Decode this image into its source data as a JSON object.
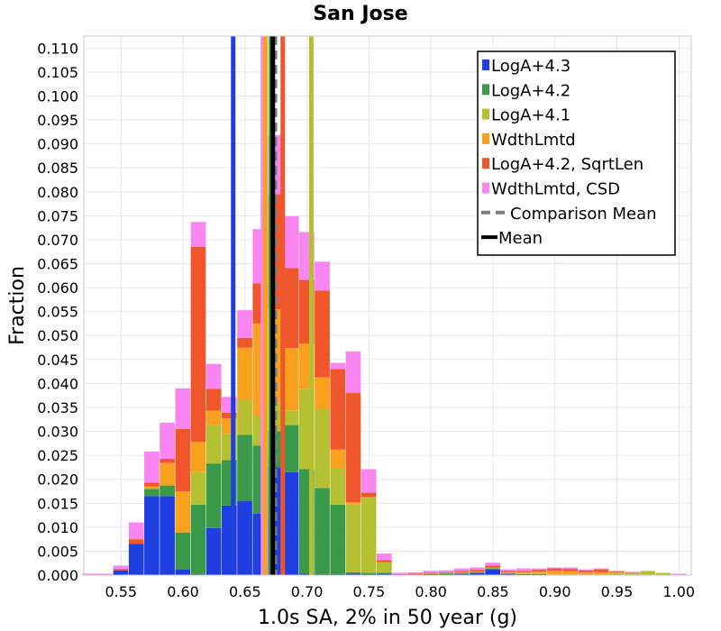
{
  "chart_data": {
    "type": "bar",
    "title": "San Jose",
    "xlabel": "1.0s SA, 2% in 50 year (g)",
    "ylabel": "Fraction",
    "xlim": [
      0.52,
      1.01
    ],
    "ylim": [
      0,
      0.1125
    ],
    "xticks": [
      "0.55",
      "0.60",
      "0.65",
      "0.70",
      "0.75",
      "0.80",
      "0.85",
      "0.90",
      "0.95",
      "1.00"
    ],
    "yticks": [
      "0.000",
      "0.005",
      "0.010",
      "0.015",
      "0.020",
      "0.025",
      "0.030",
      "0.035",
      "0.040",
      "0.045",
      "0.050",
      "0.055",
      "0.060",
      "0.065",
      "0.070",
      "0.075",
      "0.080",
      "0.085",
      "0.090",
      "0.095",
      "0.100",
      "0.105",
      "0.110"
    ],
    "grid": true,
    "legend_position": "top-right",
    "bin_width": 0.0125,
    "x": [
      0.525,
      0.5375,
      0.55,
      0.5625,
      0.575,
      0.5875,
      0.6,
      0.6125,
      0.625,
      0.6375,
      0.65,
      0.6625,
      0.675,
      0.6875,
      0.7,
      0.7125,
      0.725,
      0.7375,
      0.75,
      0.7625,
      0.775,
      0.7875,
      0.8,
      0.8125,
      0.825,
      0.8375,
      0.85,
      0.8625,
      0.875,
      0.8875,
      0.9,
      0.9125,
      0.925,
      0.9375,
      0.95,
      0.9625,
      0.975,
      0.9875,
      1.0
    ],
    "series": [
      {
        "name": "LogA+4.3",
        "color": "#1f3fe0",
        "values": [
          0,
          0,
          0.001,
          0.0065,
          0.0165,
          0.0165,
          0.0012,
          0.0002,
          0.0098,
          0.0145,
          0.0155,
          0.0128,
          0.0225,
          0.0215,
          0.0003,
          0.0002,
          0.0002,
          0.0003,
          0.0002,
          0.0003,
          0,
          0,
          0.0002,
          0.0002,
          0.0003,
          0.0005,
          0.0012,
          0.0003,
          0.0002,
          0.0002,
          0,
          0,
          0,
          0,
          0,
          0,
          0,
          0,
          0
        ]
      },
      {
        "name": "LogA+4.2",
        "color": "#3a9a4a",
        "values": [
          0,
          0,
          0,
          0,
          0.0015,
          0.0022,
          0.0077,
          0.0145,
          0.0135,
          0.0095,
          0.0138,
          0.0142,
          0.0075,
          0.0098,
          0.0218,
          0.018,
          0.0145,
          0.0003,
          0.0003,
          0.0002,
          0,
          0,
          0,
          0.0001,
          0,
          0,
          0.0002,
          0,
          0,
          0,
          0,
          0,
          0,
          0,
          0,
          0,
          0,
          0,
          0
        ]
      },
      {
        "name": "LogA+4.1",
        "color": "#b4c032",
        "values": [
          0,
          0,
          0,
          0,
          0,
          0,
          0,
          0.0068,
          0.008,
          0.0055,
          0.0073,
          0.0062,
          0.0058,
          0.003,
          0.0168,
          0.0165,
          0.0076,
          0.0142,
          0.0158,
          0.0022,
          0,
          0.0001,
          0.0001,
          0.0001,
          0.0003,
          0.0002,
          0.0002,
          0.0001,
          0.0002,
          0.0002,
          0.0002,
          0.0002,
          0.0002,
          0.0002,
          0.0004,
          0.0005,
          0.0008,
          0.0004,
          0.0002
        ]
      },
      {
        "name": "WdthLmtd",
        "color": "#f7a11f",
        "values": [
          0,
          0,
          0,
          0,
          0.0005,
          0.0047,
          0.0086,
          0.0063,
          0.003,
          0.0032,
          0.0109,
          0.0193,
          0.0197,
          0.0131,
          0.0094,
          0.0066,
          0.0039,
          0.0004,
          0,
          0,
          0,
          0,
          0,
          0,
          0,
          0,
          0,
          0.0002,
          0.0002,
          0.0003,
          0.0007,
          0.0006,
          0.0004,
          0.0004,
          0.0002,
          0,
          0,
          0,
          0
        ]
      },
      {
        "name": "LogA+4.2, SqrtLen",
        "color": "#f0562b",
        "values": [
          0,
          0,
          0.0003,
          0.001,
          0.0008,
          0.0009,
          0.013,
          0.0407,
          0.0046,
          0.0012,
          0.002,
          0.0084,
          0.024,
          0.0167,
          0.0133,
          0.0181,
          0.0168,
          0.0228,
          0.0009,
          0.0004,
          0.0002,
          0.0002,
          0.0002,
          0.0002,
          0.0003,
          0.0004,
          0.0004,
          0.0003,
          0.0003,
          0.0004,
          0.0005,
          0.0005,
          0.0004,
          0.0006,
          0.0002,
          0.0001,
          0,
          0,
          0
        ]
      },
      {
        "name": "WdthLmtd, CSD",
        "color": "#f986f0",
        "values": [
          0.0003,
          0.0003,
          0.0007,
          0.0035,
          0.0065,
          0.0075,
          0.0085,
          0.0052,
          0.0052,
          0.0033,
          0.0058,
          0.0113,
          0.0123,
          0.0108,
          0.01,
          0.006,
          0.0013,
          0.0087,
          0.0049,
          0.0014,
          0.0003,
          0.0003,
          0.0004,
          0.0004,
          0.0005,
          0.0005,
          0.0006,
          0.0003,
          0.0005,
          0.0003,
          0.0002,
          0.0003,
          0.0002,
          0.0002,
          0.0001,
          0.0001,
          0.0001,
          0.0001,
          0.0001
        ]
      }
    ],
    "vlines": [
      {
        "name": "LogA+4.3",
        "x": 0.6405,
        "color": "#1f3fe0",
        "style": "solid"
      },
      {
        "name": "WdthLmtd, CSD",
        "x": 0.6645,
        "color": "#f986f0",
        "style": "solid"
      },
      {
        "name": "WdthLmtd",
        "x": 0.6665,
        "color": "#f7a11f",
        "style": "solid"
      },
      {
        "name": "LogA+4.2",
        "x": 0.671,
        "color": "#3a9a4a",
        "style": "solid"
      },
      {
        "name": "LogA+4.2, SqrtLen",
        "x": 0.6805,
        "color": "#f0562b",
        "style": "solid"
      },
      {
        "name": "LogA+4.1",
        "x": 0.7035,
        "color": "#b4c032",
        "style": "solid"
      },
      {
        "name": "Comparison Mean",
        "x": 0.6745,
        "color": "#808080",
        "style": "dashed"
      },
      {
        "name": "Mean",
        "x": 0.6725,
        "color": "#000000",
        "style": "solid"
      }
    ],
    "legend": [
      {
        "label": "LogA+4.3",
        "color": "#1f3fe0",
        "kind": "box"
      },
      {
        "label": "LogA+4.2",
        "color": "#3a9a4a",
        "kind": "box"
      },
      {
        "label": "LogA+4.1",
        "color": "#b4c032",
        "kind": "box"
      },
      {
        "label": "WdthLmtd",
        "color": "#f7a11f",
        "kind": "box"
      },
      {
        "label": "LogA+4.2, SqrtLen",
        "color": "#f0562b",
        "kind": "box"
      },
      {
        "label": "WdthLmtd, CSD",
        "color": "#f986f0",
        "kind": "box"
      },
      {
        "label": "Comparison Mean",
        "color": "#808080",
        "kind": "dash"
      },
      {
        "label": "Mean",
        "color": "#000000",
        "kind": "line"
      }
    ]
  }
}
